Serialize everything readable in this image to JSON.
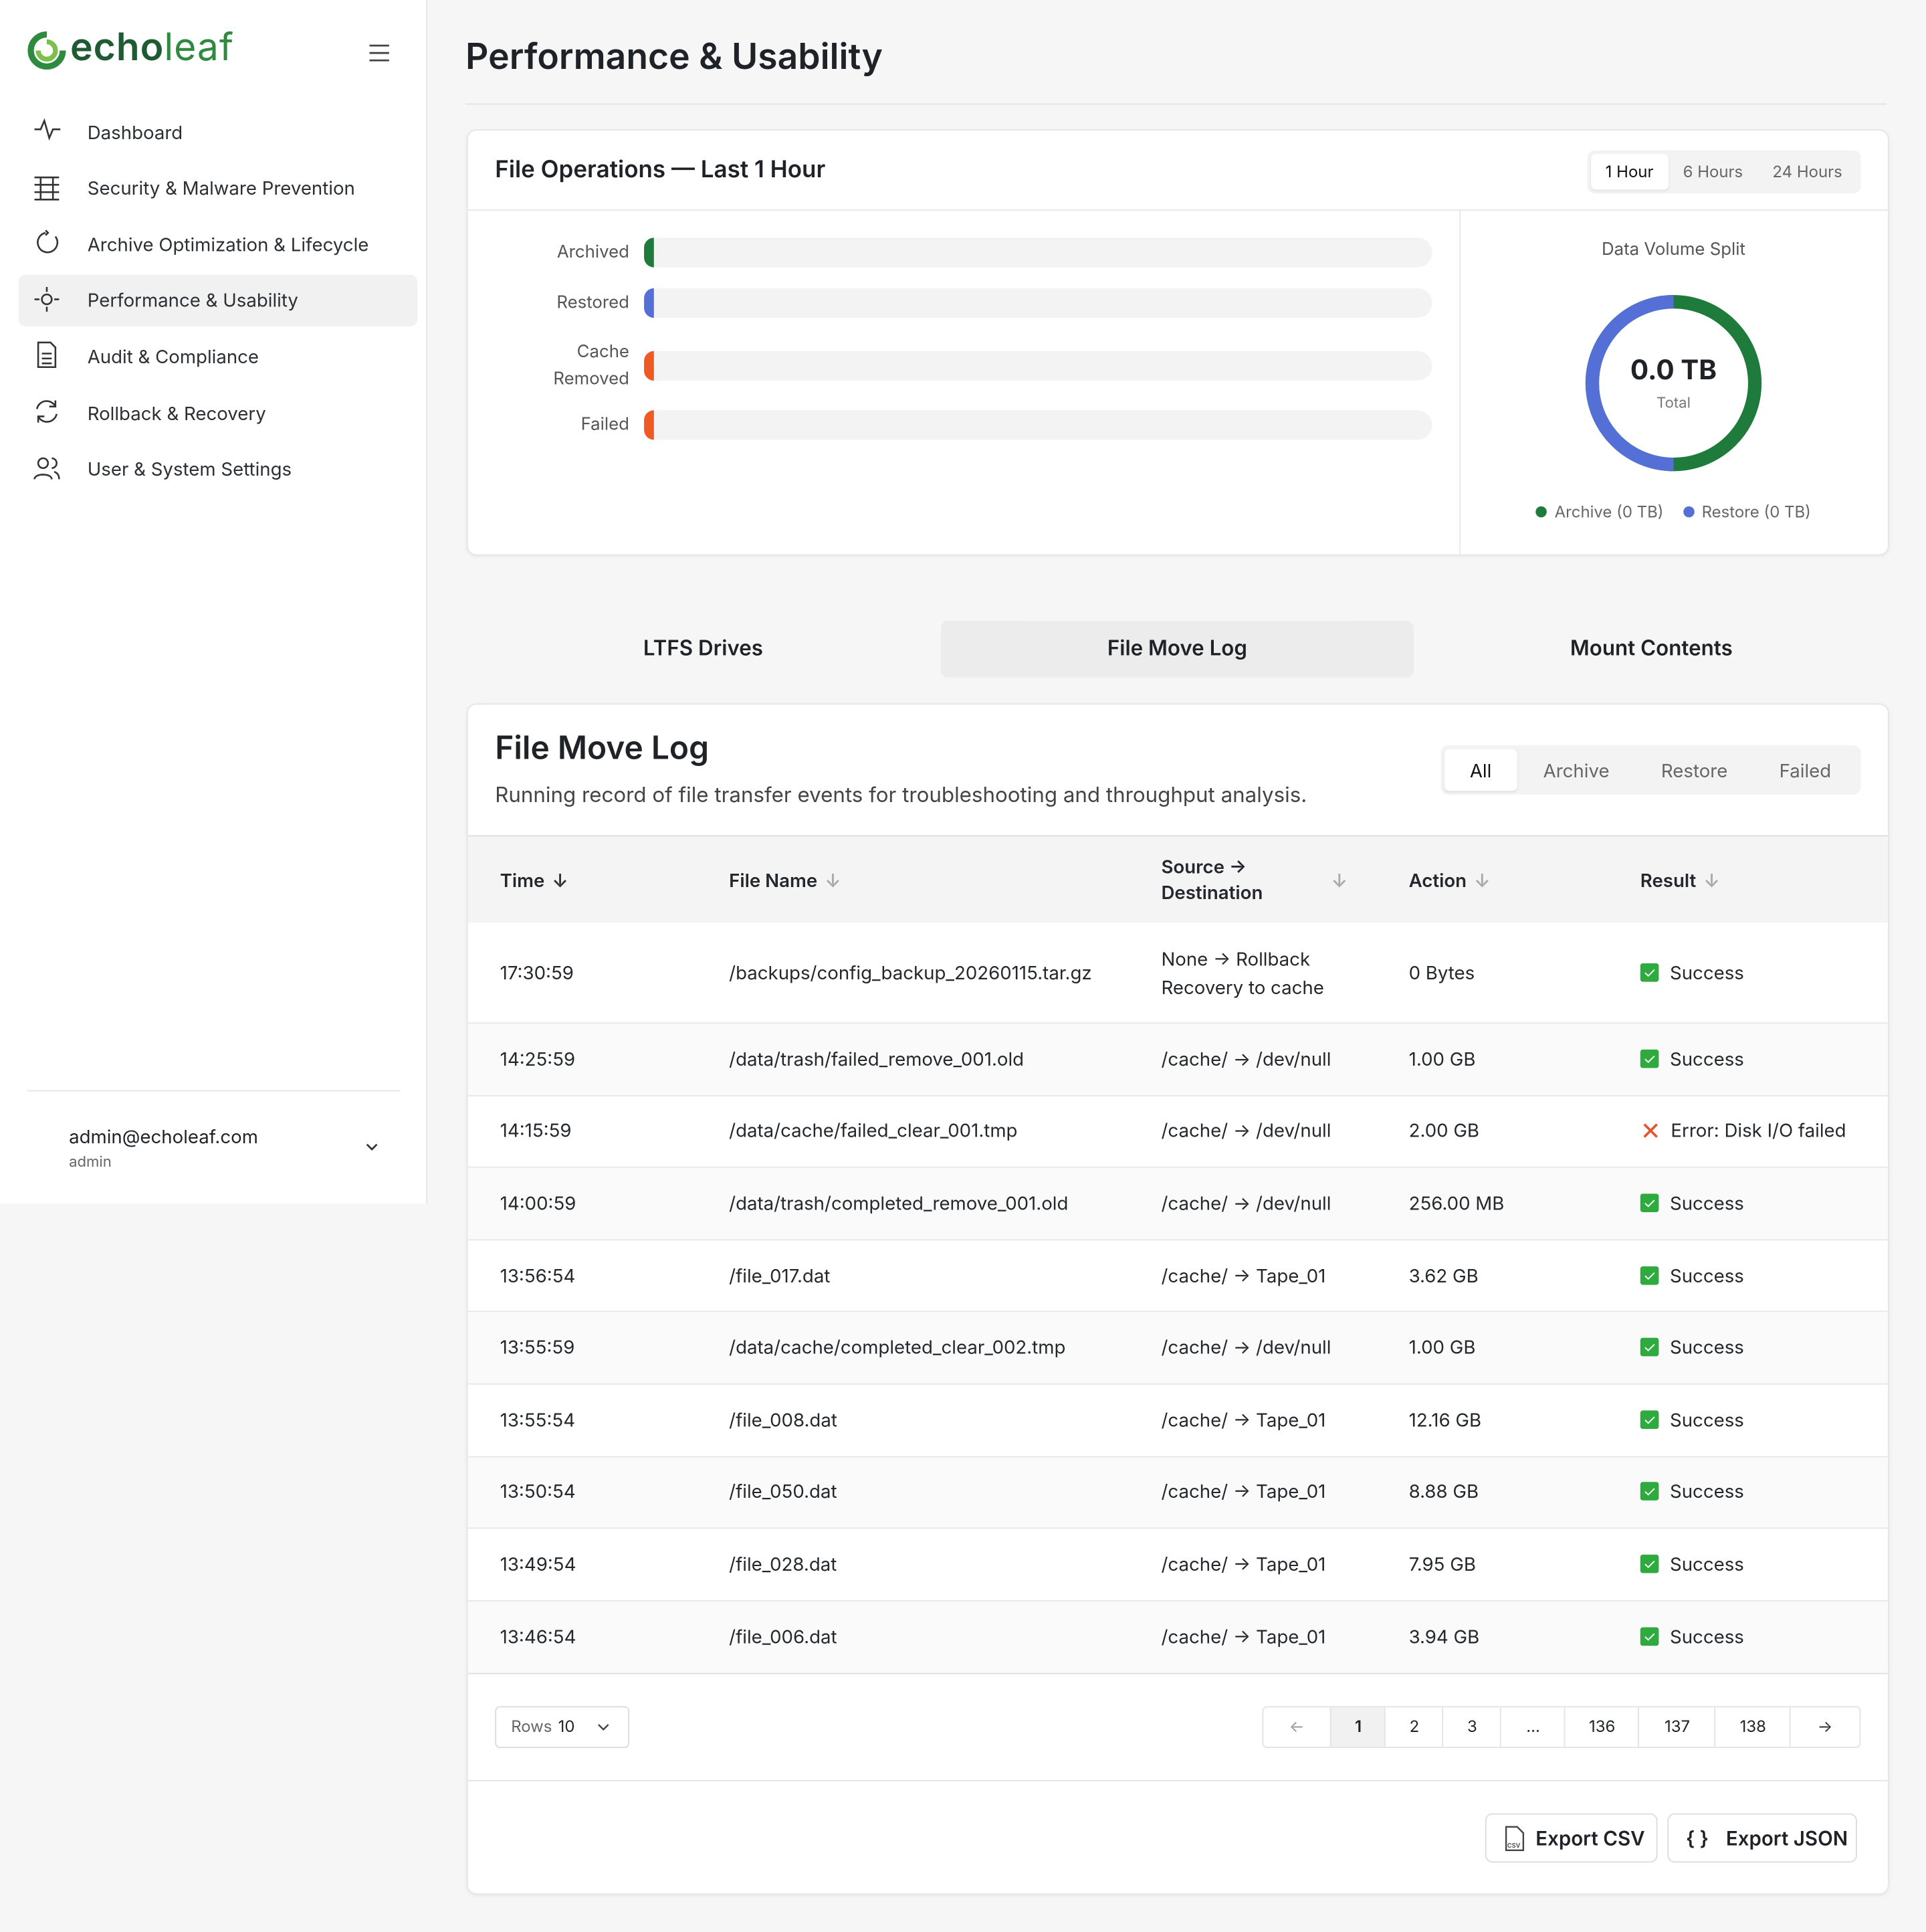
{
  "brand": [
    "echo",
    "leaf"
  ],
  "nav": [
    "Dashboard",
    "Security & Malware Prevention",
    "Archive Optimization & Lifecycle",
    "Performance & Usability",
    "Audit & Compliance",
    "Rollback & Recovery",
    "User & System Settings"
  ],
  "user": {
    "email": "admin@echoleaf.com",
    "role": "admin"
  },
  "page_title": "Performance & Usability",
  "file_ops": {
    "title": "File Operations — Last 1 Hour",
    "ranges": [
      "1 Hour",
      "6 Hours",
      "24 Hours"
    ],
    "bars": [
      {
        "label": "Archived",
        "value": 0,
        "color": "#1e7b3c"
      },
      {
        "label": "Restored",
        "value": 0,
        "color": "#5470d6"
      },
      {
        "label": "Cache Removed",
        "value": 0,
        "color": "#ef5a24"
      },
      {
        "label": "Failed",
        "value": 0,
        "color": "#ef5a24"
      }
    ],
    "donut": {
      "title": "Data Volume Split",
      "total": "0.0 TB",
      "total_label": "Total",
      "legend": [
        "Archive (0 TB)",
        "Restore (0 TB)"
      ]
    }
  },
  "tabs": [
    "LTFS Drives",
    "File Move Log",
    "Mount Contents"
  ],
  "log": {
    "title": "File Move Log",
    "subtitle": "Running record of file transfer events for troubleshooting and throughput analysis.",
    "filters": [
      "All",
      "Archive",
      "Restore",
      "Failed"
    ],
    "columns": [
      "Time",
      "File Name",
      "Source → Destination",
      "Action",
      "Result"
    ],
    "rows": [
      [
        "17:30:59",
        "/backups/config_backup_20260115.tar.gz",
        "None → Rollback Recovery to cache",
        "0 Bytes",
        "Success"
      ],
      [
        "14:25:59",
        "/data/trash/failed_remove_001.old",
        "/cache/ → /dev/null",
        "1.00 GB",
        "Success"
      ],
      [
        "14:15:59",
        "/data/cache/failed_clear_001.tmp",
        "/cache/ → /dev/null",
        "2.00 GB",
        "Error: Disk I/O failed"
      ],
      [
        "14:00:59",
        "/data/trash/completed_remove_001.old",
        "/cache/ → /dev/null",
        "256.00 MB",
        "Success"
      ],
      [
        "13:56:54",
        "/file_017.dat",
        "/cache/ → Tape_01",
        "3.62 GB",
        "Success"
      ],
      [
        "13:55:59",
        "/data/cache/completed_clear_002.tmp",
        "/cache/ → /dev/null",
        "1.00 GB",
        "Success"
      ],
      [
        "13:55:54",
        "/file_008.dat",
        "/cache/ → Tape_01",
        "12.16 GB",
        "Success"
      ],
      [
        "13:50:54",
        "/file_050.dat",
        "/cache/ → Tape_01",
        "8.88 GB",
        "Success"
      ],
      [
        "13:49:54",
        "/file_028.dat",
        "/cache/ → Tape_01",
        "7.95 GB",
        "Success"
      ],
      [
        "13:46:54",
        "/file_006.dat",
        "/cache/ → Tape_01",
        "3.94 GB",
        "Success"
      ]
    ],
    "rows_label": "Rows",
    "rows_value": "10",
    "pages": [
      "1",
      "2",
      "3",
      "...",
      "136",
      "137",
      "138"
    ],
    "exports": [
      "Export CSV",
      "Export JSON"
    ]
  }
}
